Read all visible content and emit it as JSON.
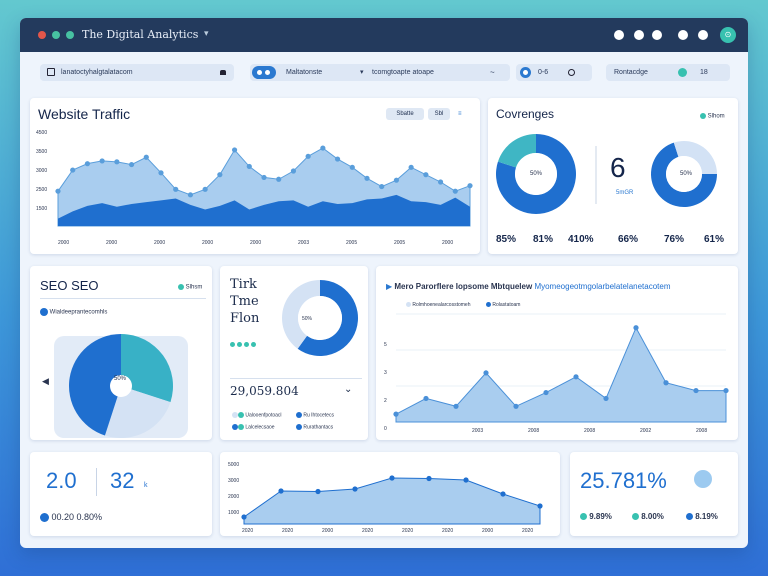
{
  "app": {
    "title": "The Digital Analytics",
    "chevron": "▾",
    "badge": "⊙"
  },
  "toolbar": {
    "search_text": "lanatoctyhalgtalatacom",
    "toggle_label": "Maltatonste",
    "dropdown_text": "tcomgtoapte atoape",
    "counter": "0-6",
    "filter_label": "Rontacdge",
    "filter_count": "18"
  },
  "traffic": {
    "title": "Website Traffic",
    "btn_day": "Sbatte",
    "btn_week": "Sbl",
    "y_ticks": [
      "4500",
      "3500",
      "3000",
      "2500",
      "1500"
    ],
    "x_ticks": [
      "2000",
      "2000",
      "2000",
      "2000",
      "2000",
      "2003",
      "2005",
      "2005",
      "2000"
    ],
    "chart_data": {
      "type": "area",
      "x": [
        0,
        1,
        2,
        3,
        4,
        5,
        6,
        7,
        8,
        9,
        10,
        11,
        12,
        13,
        14,
        15,
        16,
        17,
        18,
        19,
        20,
        21,
        22,
        23,
        24,
        25,
        26,
        27,
        28
      ],
      "series": [
        {
          "values": [
            1900,
            3050,
            3400,
            3550,
            3500,
            3350,
            3750,
            2900,
            2000,
            1700,
            2000,
            2800,
            4150,
            3250,
            2650,
            2550,
            3000,
            3800,
            4250,
            3650,
            3200,
            2600,
            2150,
            2500,
            3200,
            2800,
            2400,
            1900,
            2200
          ]
        },
        {
          "values": [
            400,
            800,
            1100,
            1250,
            1050,
            1200,
            1300,
            1400,
            1500,
            1150,
            900,
            1100,
            1400,
            900,
            1150,
            1350,
            1400,
            1050,
            1350,
            1200,
            1250,
            1450,
            1500,
            1700,
            1350,
            1300,
            1150,
            1550,
            1050
          ]
        }
      ],
      "ylim": [
        0,
        4800
      ]
    }
  },
  "conversions": {
    "title": "Covrenges",
    "legend": "Slhom",
    "donut1_label": "50%",
    "big_number": "6",
    "big_number_sub": "5mGR",
    "donut2_label": "50%",
    "stats": [
      "85%",
      "81%",
      "410%",
      "66%",
      "76%",
      "61%"
    ],
    "chart_data": [
      {
        "type": "pie",
        "values": [
          80,
          20
        ]
      },
      {
        "type": "pie",
        "values": [
          70,
          30
        ]
      }
    ]
  },
  "seo": {
    "title": "SEO SEO",
    "legend": "Slhsm",
    "sub_label": "Wialdeeprantecomhls",
    "pie_label": "50%",
    "chart_data": {
      "type": "pie",
      "values": [
        30,
        25,
        45
      ]
    }
  },
  "tink": {
    "title_lines": [
      "Tirk",
      "Tme",
      "Flon"
    ],
    "donut_label": "50%",
    "value": "29,059.804",
    "rows": [
      "Ualooenfpotoacl",
      "Ru Ihtocetecs",
      "Lalcelecsaoe",
      "Rurathantacs"
    ],
    "chart_data": {
      "type": "pie",
      "values": [
        60,
        40
      ]
    }
  },
  "performance": {
    "title": "Mero Parorflere Iopsome Mbtquelew",
    "subtitle_link": "Myomeogeotmgolarbelatelanetacotem",
    "legend1": "Rolmhoenealarcosstomeh",
    "legend2": "Rolastatoam",
    "y_ticks": [
      "5",
      "3",
      "2",
      "0"
    ],
    "x_ticks": [
      "2003",
      "2008",
      "2008",
      "2002",
      "2008"
    ],
    "chart_data": {
      "type": "line",
      "x": [
        0,
        1,
        2,
        3,
        4,
        5,
        6,
        7,
        8,
        9,
        10,
        11
      ],
      "values": [
        0.4,
        1.2,
        0.8,
        2.5,
        0.8,
        1.5,
        2.3,
        1.2,
        4.8,
        2.0,
        1.6,
        1.6
      ],
      "ylim": [
        0,
        5.5
      ]
    }
  },
  "kpi_left": {
    "a": "2.0",
    "b": "32",
    "b_suffix": "k",
    "footer": "00.20 0.80%"
  },
  "mini": {
    "y_ticks": [
      "5000",
      "3000",
      "2000",
      "1000"
    ],
    "x_ticks": [
      "2020",
      "2020",
      "2000",
      "2020",
      "2020",
      "2020",
      "2000",
      "2020"
    ],
    "chart_data": {
      "type": "area",
      "x": [
        0,
        1,
        2,
        3,
        4,
        5,
        6,
        7,
        8
      ],
      "values": [
        700,
        3300,
        3250,
        3500,
        4600,
        4550,
        4400,
        3000,
        1800
      ],
      "ylim": [
        0,
        6000
      ]
    }
  },
  "kpi_right": {
    "value": "25.781%",
    "stats": [
      "9.89%",
      "8.00%",
      "8.19%"
    ]
  }
}
